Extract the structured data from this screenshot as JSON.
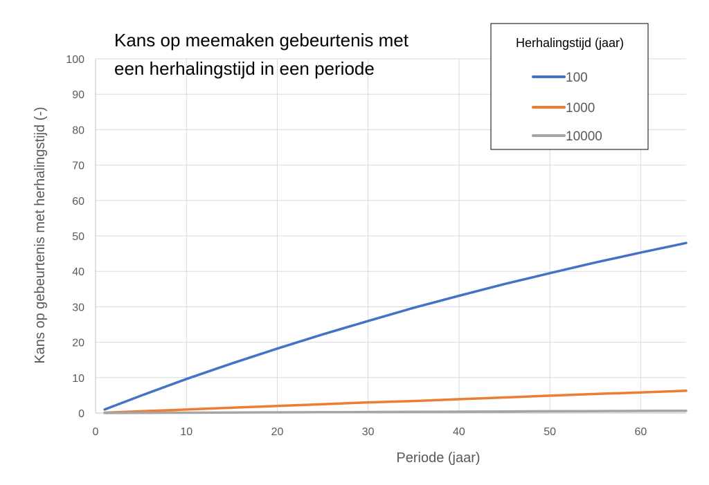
{
  "chart_data": {
    "type": "line",
    "title_lines": [
      "Kans op meemaken gebeurtenis met",
      "een herhalingstijd in een periode"
    ],
    "xlabel": "Periode (jaar)",
    "ylabel": "Kans op gebeurtenis met herhalingstijd (-)",
    "xlim": [
      0,
      65
    ],
    "ylim": [
      0,
      100
    ],
    "xticks": [
      0,
      10,
      20,
      30,
      40,
      50,
      60
    ],
    "yticks": [
      0,
      10,
      20,
      30,
      40,
      50,
      60,
      70,
      80,
      90,
      100
    ],
    "grid": true,
    "legend": {
      "title": "Herhalingstijd (jaar)",
      "placement": "top-right"
    },
    "x": [
      1,
      5,
      10,
      15,
      20,
      25,
      30,
      35,
      40,
      45,
      50,
      55,
      60,
      65
    ],
    "series": [
      {
        "name": "100",
        "color": "#4472C4",
        "values": [
          1.0,
          4.9,
          9.6,
          14.0,
          18.2,
          22.2,
          26.0,
          29.7,
          33.1,
          36.4,
          39.5,
          42.5,
          45.3,
          48.0
        ]
      },
      {
        "name": "1000",
        "color": "#ED7D31",
        "values": [
          0.1,
          0.5,
          1.0,
          1.5,
          2.0,
          2.5,
          3.0,
          3.4,
          3.9,
          4.4,
          4.9,
          5.4,
          5.8,
          6.3
        ]
      },
      {
        "name": "10000",
        "color": "#A5A5A5",
        "values": [
          0.01,
          0.05,
          0.1,
          0.15,
          0.2,
          0.25,
          0.3,
          0.35,
          0.4,
          0.45,
          0.5,
          0.55,
          0.6,
          0.65
        ]
      }
    ]
  }
}
